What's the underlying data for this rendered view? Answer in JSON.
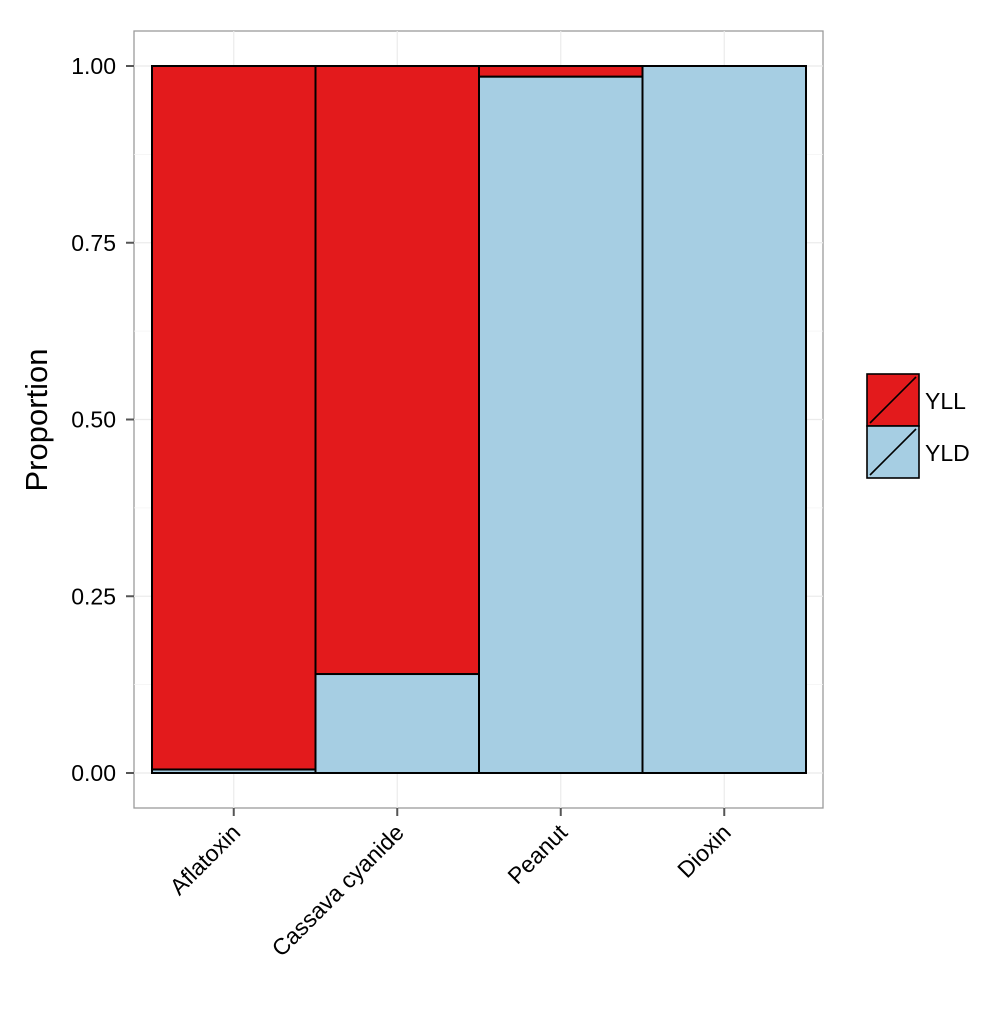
{
  "chart_data": {
    "type": "bar",
    "stacked": true,
    "categories": [
      "Aflatoxin",
      "Cassava cyanide",
      "Peanut",
      "Dioxin"
    ],
    "series": [
      {
        "name": "YLD",
        "color": "#a6cee3",
        "values": [
          0.005,
          0.14,
          0.985,
          1.0
        ]
      },
      {
        "name": "YLL",
        "color": "#e31a1c",
        "values": [
          0.995,
          0.86,
          0.015,
          0.0
        ]
      }
    ],
    "ylabel": "Proportion",
    "xlabel": "",
    "ylim": [
      0,
      1
    ],
    "yticks": [
      0,
      0.25,
      0.5,
      0.75,
      1.0
    ],
    "ytick_labels": [
      "0.00",
      "0.25",
      "0.50",
      "0.75",
      "1.00"
    ],
    "xtick_rotation": -45,
    "grid": true,
    "legend": {
      "position": "right",
      "entries": [
        {
          "label": "YLL",
          "color": "#e31a1c"
        },
        {
          "label": "YLD",
          "color": "#a6cee3"
        }
      ]
    }
  }
}
